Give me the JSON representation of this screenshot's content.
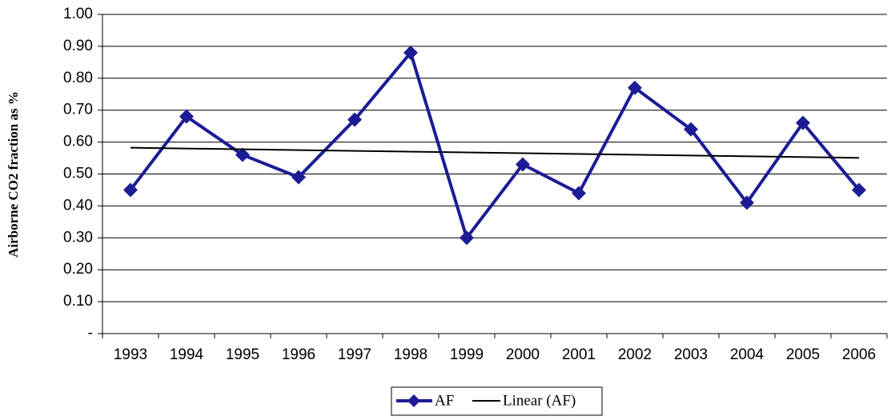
{
  "chart_data": {
    "type": "line",
    "y_label": "Airborne  CO2 fraction as %",
    "categories": [
      "1993",
      "1994",
      "1995",
      "1996",
      "1997",
      "1998",
      "1999",
      "2000",
      "2001",
      "2002",
      "2003",
      "2004",
      "2005",
      "2006"
    ],
    "series": [
      {
        "name": "AF",
        "color": "#1c1c96",
        "values": [
          0.45,
          0.68,
          0.56,
          0.49,
          0.67,
          0.88,
          0.3,
          0.53,
          0.44,
          0.77,
          0.64,
          0.41,
          0.66,
          0.45
        ]
      }
    ],
    "trendline": {
      "name": "Linear (AF)",
      "type": "linear",
      "color": "#000000"
    },
    "ylim": [
      0,
      1
    ],
    "yticks": [
      {
        "value": 0,
        "label": "-"
      },
      {
        "value": 0.1,
        "label": "0.10"
      },
      {
        "value": 0.2,
        "label": "0.20"
      },
      {
        "value": 0.3,
        "label": "0.30"
      },
      {
        "value": 0.4,
        "label": "0.40"
      },
      {
        "value": 0.5,
        "label": "0.50"
      },
      {
        "value": 0.6,
        "label": "0.60"
      },
      {
        "value": 0.7,
        "label": "0.70"
      },
      {
        "value": 0.8,
        "label": "0.80"
      },
      {
        "value": 0.9,
        "label": "0.90"
      },
      {
        "value": 1,
        "label": "1.00"
      }
    ],
    "grid": true,
    "legend": "bottom"
  }
}
